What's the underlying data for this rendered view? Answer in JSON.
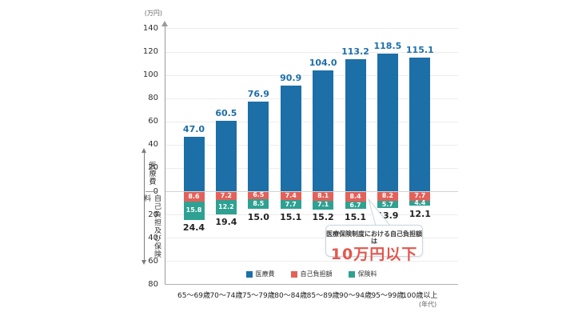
{
  "chart_data": {
    "type": "bar",
    "categories": [
      "65〜69歳",
      "70〜74歳",
      "75〜79歳",
      "80〜84歳",
      "85〜89歳",
      "90〜94歳",
      "95〜99歳",
      "100歳以上"
    ],
    "series": [
      {
        "name": "医療費",
        "color": "#1d6fa8",
        "direction": "up",
        "values": [
          47.0,
          60.5,
          76.9,
          90.9,
          104.0,
          113.2,
          118.5,
          115.1
        ]
      },
      {
        "name": "自己負担額",
        "color": "#e2615a",
        "direction": "down",
        "values": [
          8.6,
          7.2,
          6.5,
          7.4,
          8.1,
          8.4,
          8.2,
          7.7
        ]
      },
      {
        "name": "保険料",
        "color": "#2fa192",
        "direction": "down",
        "values": [
          15.8,
          12.2,
          8.5,
          7.7,
          7.1,
          6.7,
          5.7,
          4.4
        ]
      }
    ],
    "totals_below": [
      24.4,
      19.4,
      15.0,
      15.1,
      15.2,
      15.1,
      13.9,
      12.1
    ],
    "y_axis": {
      "unit": "(万円)",
      "max": 140,
      "min": -80,
      "step": 20,
      "labels_absolute": true
    },
    "x_axis": {
      "unit": "(年代)"
    },
    "group_axis_labels": {
      "upper": "医療費",
      "lower": "自己負担及び保険料"
    },
    "legend": {
      "position": "bottom"
    },
    "grid": true
  },
  "callout": {
    "line1": "医療保険制度における自己負担額は",
    "line2": "10万円以下",
    "value_color": "#e4574e"
  }
}
